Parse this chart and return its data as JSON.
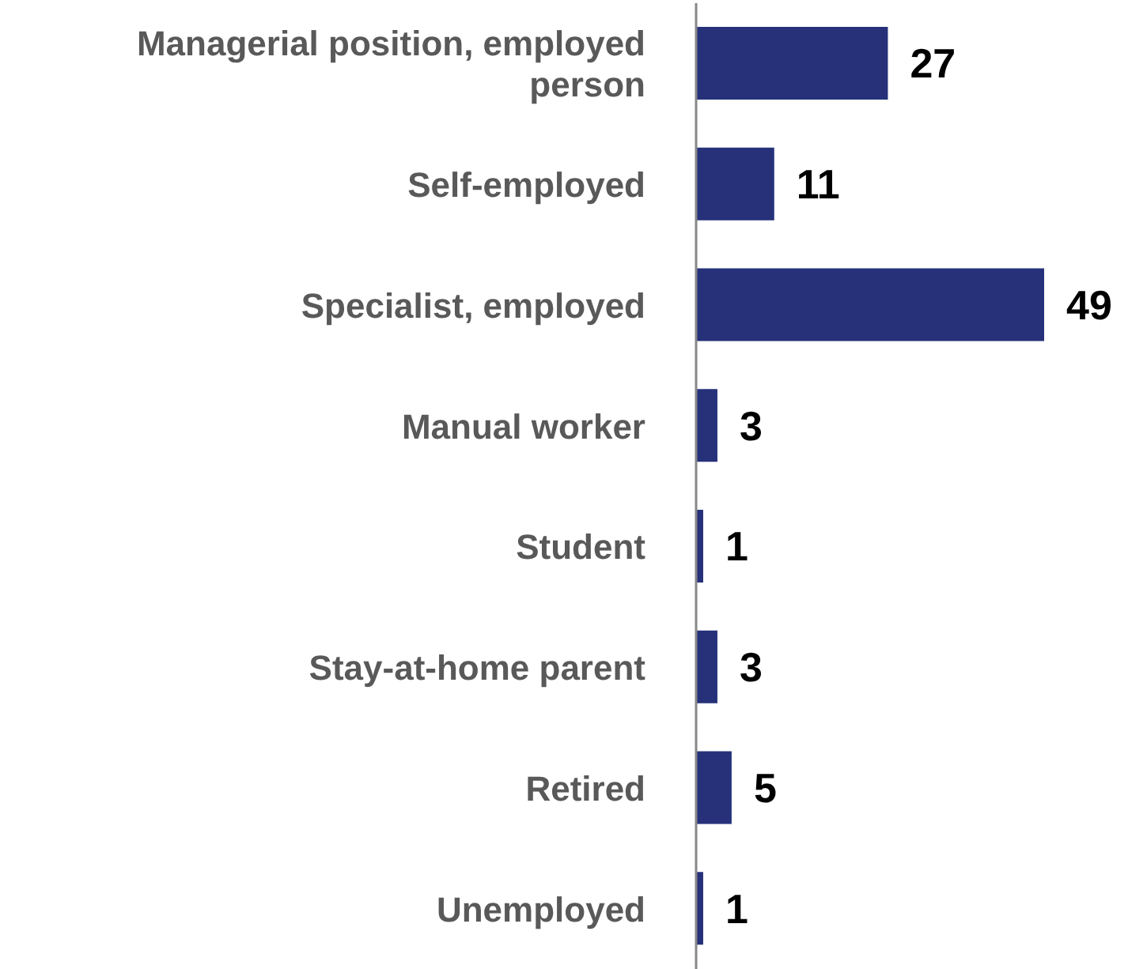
{
  "chart_data": {
    "type": "bar",
    "orientation": "horizontal",
    "categories": [
      "Managerial position, employed person",
      "Self-employed",
      "Specialist, employed",
      "Manual worker",
      "Student",
      "Stay-at-home parent",
      "Retired",
      "Unemployed"
    ],
    "values": [
      27,
      11,
      49,
      3,
      1,
      3,
      5,
      1
    ],
    "color": "#26317a",
    "data_labels": true
  }
}
